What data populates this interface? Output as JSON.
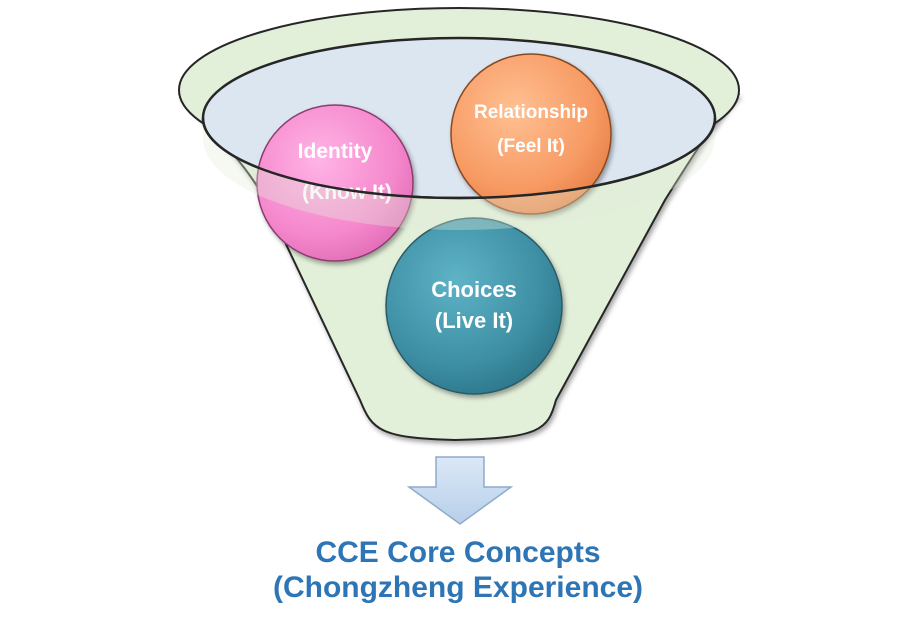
{
  "diagram": {
    "circles": [
      {
        "id": "identity",
        "line1": "Identity",
        "line2": "(Know It)",
        "color": "#f585c9"
      },
      {
        "id": "relationship",
        "line1": "Relationship",
        "line2": "(Feel It)",
        "color": "#f79a63"
      },
      {
        "id": "choices",
        "line1": "Choices",
        "line2": "(Live It)",
        "color": "#3d8ea3"
      }
    ],
    "funnel_color": "#e2efd9",
    "funnel_rim_color": "#dce6f1",
    "arrow_color": "#c6d9ef",
    "caption": {
      "line1": "CCE Core Concepts",
      "line2": "(Chongzheng Experience)",
      "color": "#2e75b6"
    }
  }
}
